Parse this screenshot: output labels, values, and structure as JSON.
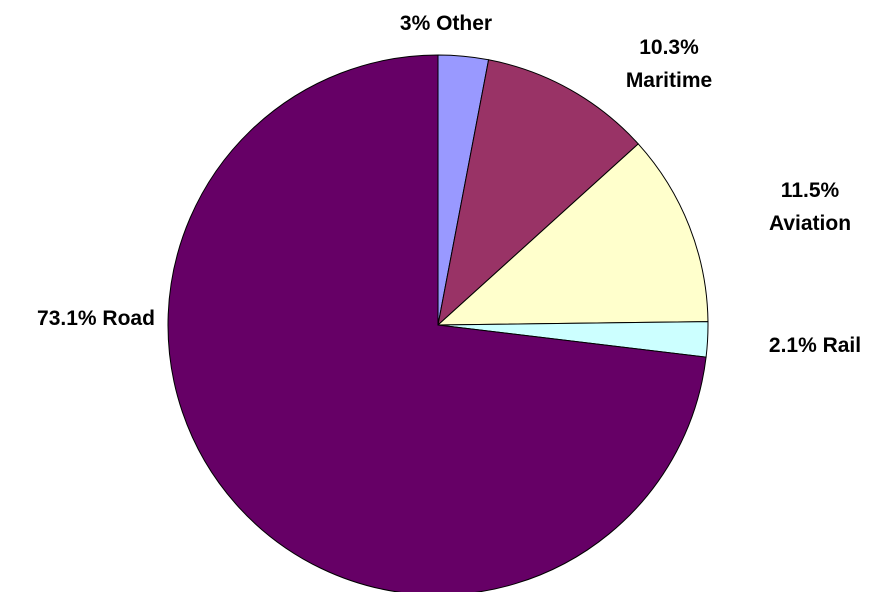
{
  "chart_data": {
    "type": "pie",
    "title": "",
    "slices": [
      {
        "name": "Other",
        "value": 3,
        "label_lines": [
          "3% Other"
        ],
        "color": "#9999ff"
      },
      {
        "name": "Maritime",
        "value": 10.3,
        "label_lines": [
          "10.3%",
          "Maritime"
        ],
        "color": "#993366"
      },
      {
        "name": "Aviation",
        "value": 11.5,
        "label_lines": [
          "11.5%",
          "Aviation"
        ],
        "color": "#ffffcc"
      },
      {
        "name": "Rail",
        "value": 2.1,
        "label_lines": [
          "2.1% Rail"
        ],
        "color": "#ccffff"
      },
      {
        "name": "Road",
        "value": 73.1,
        "label_lines": [
          "73.1% Road"
        ],
        "color": "#660066"
      }
    ],
    "start_angle_deg": 0,
    "direction": "clockwise",
    "legend": "none"
  }
}
